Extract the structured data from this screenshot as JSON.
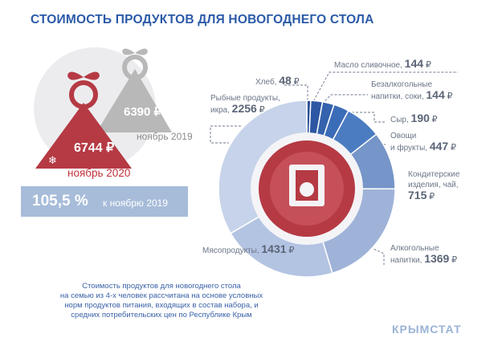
{
  "title": "СТОИМОСТЬ ПРОДУКТОВ ДЛЯ НОВОГОДНЕГО СТОЛА",
  "comparison": {
    "value_2020": "6744 ₽",
    "label_2020": "ноябрь 2020",
    "value_2019": "6390 ₽",
    "label_2019": "ноябрь 2019",
    "yoy_value": "105,5 %",
    "yoy_caption": "к ноябрю 2019"
  },
  "footnote": [
    "Стоимость продуктов для новогоднего стола",
    "на семью из 4-х человек рассчитана на основе условных",
    "норм продуктов питания, входящих в состав набора, и",
    "средних потребительских цен по Республике Крым"
  ],
  "source": "КРЫМСТАТ",
  "labels": {
    "bread": {
      "text": "Хлеб,",
      "value": "48",
      "unit": "₽"
    },
    "butter": {
      "text": "Масло сливочное,",
      "value": "144",
      "unit": "₽"
    },
    "drinks": {
      "line1": "Безалкогольные",
      "line2": "напитки, соки,",
      "value": "144",
      "unit": "₽"
    },
    "cheese": {
      "text": "Сыр,",
      "value": "190",
      "unit": "₽"
    },
    "veg": {
      "line1": "Овощи",
      "line2": "и фрукты,",
      "value": "447",
      "unit": "₽"
    },
    "sweets": {
      "line1": "Кондитерские",
      "line2": "изделия, чай,",
      "value": "715",
      "unit": "₽"
    },
    "alcohol": {
      "line1": "Алкогольные",
      "line2": "напитки,",
      "value": "1369",
      "unit": "₽"
    },
    "meat": {
      "text": "Мясопродукты,",
      "value": "1431",
      "unit": "₽"
    },
    "fish": {
      "line1": "Рыбные продукты,",
      "line2": "икра,",
      "value": "2256",
      "unit": "₽"
    }
  },
  "chart_data": {
    "type": "pie",
    "title": "СТОИМОСТЬ ПРОДУКТОВ ДЛЯ НОВОГОДНЕГО СТОЛА",
    "unit": "₽",
    "slices": [
      {
        "label": "Хлеб",
        "value": 48,
        "color": "#2a4f97"
      },
      {
        "label": "Масло сливочное",
        "value": 144,
        "color": "#2d57a3"
      },
      {
        "label": "Безалкогольные напитки, соки",
        "value": 144,
        "color": "#3562ad"
      },
      {
        "label": "Сыр",
        "value": 190,
        "color": "#3b6cb7"
      },
      {
        "label": "Овощи и фрукты",
        "value": 447,
        "color": "#4b7cc2"
      },
      {
        "label": "Кондитерские изделия, чай",
        "value": 715,
        "color": "#7695c8"
      },
      {
        "label": "Алкогольные напитки",
        "value": 1369,
        "color": "#9fb3d8"
      },
      {
        "label": "Мясопродукты",
        "value": 1431,
        "color": "#b3c3e2"
      },
      {
        "label": "Рыбные продукты, икра",
        "value": 2256,
        "color": "#c6d3ea"
      }
    ],
    "total_2020": 6744,
    "total_2019": 6390
  }
}
